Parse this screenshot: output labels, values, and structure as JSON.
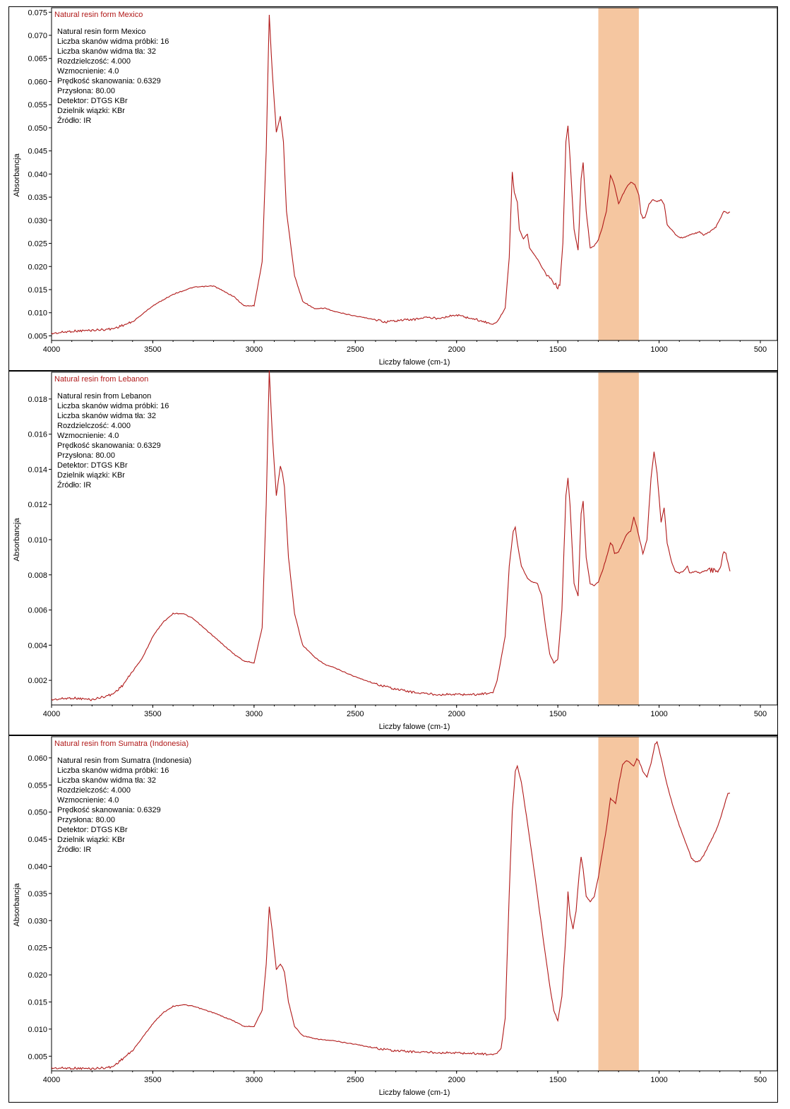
{
  "chart_data": [
    {
      "type": "line",
      "legend_label": "Natural resin form Mexico",
      "xlabel": "Liczby falowe (cm-1)",
      "ylabel": "Absorbancja",
      "xlim": [
        4000,
        500
      ],
      "ylim": [
        0.004,
        0.0755
      ],
      "x_ticks": [
        "4000",
        "3500",
        "3000",
        "2500",
        "2000",
        "1500",
        "1000",
        "500"
      ],
      "y_ticks": [
        "0.005",
        "0.010",
        "0.015",
        "0.020",
        "0.025",
        "0.030",
        "0.035",
        "0.040",
        "0.045",
        "0.050",
        "0.055",
        "0.060",
        "0.065",
        "0.070",
        "0.075"
      ],
      "highlight_band": [
        1300,
        1100
      ],
      "info_lines": [
        "Natural resin form Mexico",
        "Liczba skanów widma próbki:  16",
        "Liczba skanów widma tła:  32",
        "Rozdzielczość:  4.000",
        "Wzmocnienie:  4.0",
        "Prędkość skanowania:  0.6329",
        "Przysłona:  80.00",
        "Detektor:  DTGS KBr",
        "Dzielnik wiązki:  KBr",
        "Źródło:  IR"
      ],
      "series": [
        {
          "x": [
            4000,
            3900,
            3800,
            3700,
            3600,
            3500,
            3400,
            3300,
            3200,
            3100,
            3050,
            3000,
            2960,
            2940,
            2925,
            2910,
            2890,
            2870,
            2855,
            2840,
            2800,
            2760,
            2700,
            2650,
            2600,
            2500,
            2400,
            2350,
            2300,
            2200,
            2160,
            2100,
            2000,
            1900,
            1820,
            1800,
            1760,
            1740,
            1725,
            1715,
            1700,
            1690,
            1670,
            1650,
            1640,
            1600,
            1560,
            1520,
            1500,
            1490,
            1475,
            1460,
            1450,
            1440,
            1420,
            1400,
            1385,
            1375,
            1360,
            1340,
            1320,
            1300,
            1280,
            1260,
            1240,
            1220,
            1200,
            1180,
            1160,
            1140,
            1120,
            1100,
            1090,
            1080,
            1070,
            1050,
            1030,
            1010,
            990,
            975,
            960,
            940,
            920,
            900,
            880,
            850,
            820,
            800,
            780,
            750,
            720,
            700,
            680,
            660,
            650
          ],
          "y": [
            0.0055,
            0.006,
            0.0062,
            0.0065,
            0.008,
            0.0115,
            0.014,
            0.0155,
            0.0158,
            0.0135,
            0.0115,
            0.0115,
            0.021,
            0.045,
            0.0745,
            0.062,
            0.049,
            0.0525,
            0.047,
            0.032,
            0.018,
            0.0125,
            0.0108,
            0.011,
            0.0102,
            0.0093,
            0.0085,
            0.008,
            0.0083,
            0.0086,
            0.009,
            0.0088,
            0.0095,
            0.0085,
            0.0075,
            0.008,
            0.011,
            0.022,
            0.0405,
            0.036,
            0.034,
            0.028,
            0.026,
            0.027,
            0.024,
            0.0215,
            0.0185,
            0.0165,
            0.0155,
            0.016,
            0.025,
            0.047,
            0.0505,
            0.0435,
            0.028,
            0.0235,
            0.039,
            0.0425,
            0.032,
            0.024,
            0.0245,
            0.0258,
            0.0285,
            0.032,
            0.0398,
            0.0375,
            0.0335,
            0.0355,
            0.0372,
            0.0382,
            0.0378,
            0.0355,
            0.0315,
            0.0305,
            0.0305,
            0.0335,
            0.0345,
            0.034,
            0.0345,
            0.0335,
            0.029,
            0.028,
            0.027,
            0.0263,
            0.0262,
            0.0268,
            0.0272,
            0.0275,
            0.0268,
            0.0275,
            0.0285,
            0.0302,
            0.032,
            0.0315,
            0.0318
          ]
        }
      ]
    },
    {
      "type": "line",
      "legend_label": "Natural resin from Lebanon",
      "xlabel": "Liczby falowe (cm-1)",
      "ylabel": "Absorbancja",
      "xlim": [
        4000,
        500
      ],
      "ylim": [
        0.0006,
        0.0194
      ],
      "x_ticks": [
        "4000",
        "3500",
        "3000",
        "2500",
        "2000",
        "1500",
        "1000",
        "500"
      ],
      "y_ticks": [
        "0.002",
        "0.004",
        "0.006",
        "0.008",
        "0.010",
        "0.012",
        "0.014",
        "0.016",
        "0.018"
      ],
      "highlight_band": [
        1300,
        1100
      ],
      "info_lines": [
        "Natural resin from Lebanon",
        "Liczba skanów widma próbki:  16",
        "Liczba skanów widma tła:  32",
        "Rozdzielczość:  4.000",
        "Wzmocnienie:  4.0",
        "Prędkość skanowania:  0.6329",
        "Przysłona:  80.00",
        "Detektor:  DTGS KBr",
        "Dzielnik wiązki:  KBr",
        "Źródło:  IR"
      ],
      "series": [
        {
          "x": [
            4000,
            3900,
            3800,
            3700,
            3650,
            3600,
            3550,
            3500,
            3450,
            3400,
            3350,
            3300,
            3200,
            3100,
            3050,
            3000,
            2960,
            2940,
            2925,
            2910,
            2890,
            2870,
            2860,
            2850,
            2830,
            2800,
            2760,
            2700,
            2650,
            2600,
            2500,
            2400,
            2300,
            2200,
            2100,
            2000,
            1900,
            1820,
            1800,
            1760,
            1740,
            1720,
            1710,
            1700,
            1680,
            1650,
            1630,
            1600,
            1580,
            1560,
            1540,
            1520,
            1500,
            1480,
            1460,
            1450,
            1440,
            1420,
            1400,
            1385,
            1375,
            1360,
            1340,
            1320,
            1300,
            1280,
            1260,
            1240,
            1230,
            1220,
            1200,
            1180,
            1160,
            1140,
            1125,
            1110,
            1100,
            1080,
            1060,
            1040,
            1025,
            1010,
            990,
            975,
            960,
            940,
            920,
            900,
            880,
            860,
            850,
            820,
            800,
            780,
            750,
            720,
            700,
            680,
            660,
            650
          ],
          "y": [
            0.0009,
            0.001,
            0.0009,
            0.0012,
            0.0017,
            0.0025,
            0.0033,
            0.0045,
            0.0053,
            0.0058,
            0.0058,
            0.0055,
            0.0045,
            0.0035,
            0.0031,
            0.003,
            0.005,
            0.012,
            0.0196,
            0.016,
            0.0125,
            0.0142,
            0.0138,
            0.013,
            0.009,
            0.0058,
            0.004,
            0.0033,
            0.0029,
            0.0027,
            0.0022,
            0.0018,
            0.0015,
            0.0013,
            0.0012,
            0.0012,
            0.0012,
            0.0013,
            0.002,
            0.0045,
            0.0085,
            0.0105,
            0.0107,
            0.0098,
            0.0085,
            0.0078,
            0.0076,
            0.0075,
            0.0068,
            0.005,
            0.0035,
            0.003,
            0.0032,
            0.006,
            0.0125,
            0.0135,
            0.012,
            0.0075,
            0.0068,
            0.0115,
            0.0122,
            0.009,
            0.0075,
            0.0074,
            0.0076,
            0.0082,
            0.009,
            0.0098,
            0.0097,
            0.0092,
            0.0093,
            0.0098,
            0.0103,
            0.0105,
            0.0113,
            0.0107,
            0.0102,
            0.0092,
            0.01,
            0.0135,
            0.015,
            0.0138,
            0.011,
            0.0118,
            0.0098,
            0.0088,
            0.0082,
            0.0081,
            0.0082,
            0.0085,
            0.0081,
            0.0082,
            0.0081,
            0.0082,
            0.0083,
            0.0082,
            0.0083,
            0.0094,
            0.0088,
            0.0082
          ]
        }
      ]
    },
    {
      "type": "line",
      "legend_label": "Natural resin from Sumatra (Indonesia)",
      "xlabel": "Liczby falowe (cm-1)",
      "ylabel": "Absorbancja",
      "xlim": [
        4000,
        500
      ],
      "ylim": [
        0.0023,
        0.0635
      ],
      "x_ticks": [
        "4000",
        "3500",
        "3000",
        "2500",
        "2000",
        "1500",
        "1000",
        "500"
      ],
      "y_ticks": [
        "0.005",
        "0.010",
        "0.015",
        "0.020",
        "0.025",
        "0.030",
        "0.035",
        "0.040",
        "0.045",
        "0.050",
        "0.055",
        "0.060"
      ],
      "highlight_band": [
        1300,
        1100
      ],
      "info_lines": [
        "Natural resin from Sumatra (Indonesia)",
        "Liczba skanów widma próbki:  16",
        "Liczba skanów widma tła:  32",
        "Rozdzielczość:  4.000",
        "Wzmocnienie:  4.0",
        "Prędkość skanowania:  0.6329",
        "Przysłona:  80.00",
        "Detektor:  DTGS KBr",
        "Dzielnik wiązki:  KBr",
        "Źródło:  IR"
      ],
      "series": [
        {
          "x": [
            4000,
            3900,
            3800,
            3700,
            3650,
            3600,
            3550,
            3500,
            3450,
            3400,
            3350,
            3300,
            3200,
            3100,
            3050,
            3000,
            2960,
            2940,
            2925,
            2910,
            2890,
            2870,
            2860,
            2850,
            2830,
            2800,
            2760,
            2700,
            2650,
            2600,
            2500,
            2400,
            2300,
            2200,
            2100,
            2000,
            1900,
            1820,
            1800,
            1780,
            1760,
            1740,
            1725,
            1710,
            1700,
            1680,
            1650,
            1620,
            1600,
            1570,
            1540,
            1520,
            1500,
            1480,
            1460,
            1450,
            1440,
            1425,
            1410,
            1395,
            1385,
            1375,
            1360,
            1340,
            1320,
            1300,
            1280,
            1260,
            1240,
            1225,
            1215,
            1200,
            1180,
            1160,
            1140,
            1125,
            1110,
            1100,
            1080,
            1060,
            1040,
            1020,
            1010,
            990,
            970,
            950,
            930,
            900,
            880,
            860,
            840,
            820,
            800,
            780,
            760,
            740,
            720,
            700,
            680,
            660,
            650
          ],
          "y": [
            0.0028,
            0.0028,
            0.0027,
            0.003,
            0.0045,
            0.006,
            0.0085,
            0.011,
            0.013,
            0.0142,
            0.0145,
            0.0142,
            0.013,
            0.0115,
            0.0105,
            0.0105,
            0.0135,
            0.022,
            0.0325,
            0.028,
            0.021,
            0.022,
            0.0215,
            0.0205,
            0.015,
            0.0105,
            0.0088,
            0.0082,
            0.008,
            0.0078,
            0.0072,
            0.0065,
            0.006,
            0.0058,
            0.0057,
            0.0056,
            0.0055,
            0.0053,
            0.0056,
            0.0065,
            0.012,
            0.035,
            0.05,
            0.0575,
            0.0585,
            0.0555,
            0.048,
            0.04,
            0.0345,
            0.026,
            0.018,
            0.0135,
            0.0115,
            0.016,
            0.0275,
            0.0353,
            0.031,
            0.0285,
            0.0318,
            0.0385,
            0.0418,
            0.0395,
            0.0345,
            0.0335,
            0.0345,
            0.038,
            0.0425,
            0.047,
            0.0525,
            0.052,
            0.0515,
            0.055,
            0.0588,
            0.0595,
            0.059,
            0.0585,
            0.0598,
            0.0595,
            0.0575,
            0.0565,
            0.059,
            0.0625,
            0.063,
            0.06,
            0.0565,
            0.0535,
            0.051,
            0.0475,
            0.0455,
            0.0435,
            0.0415,
            0.0408,
            0.041,
            0.042,
            0.0435,
            0.045,
            0.0465,
            0.0485,
            0.051,
            0.0535,
            0.0535
          ]
        }
      ]
    }
  ]
}
